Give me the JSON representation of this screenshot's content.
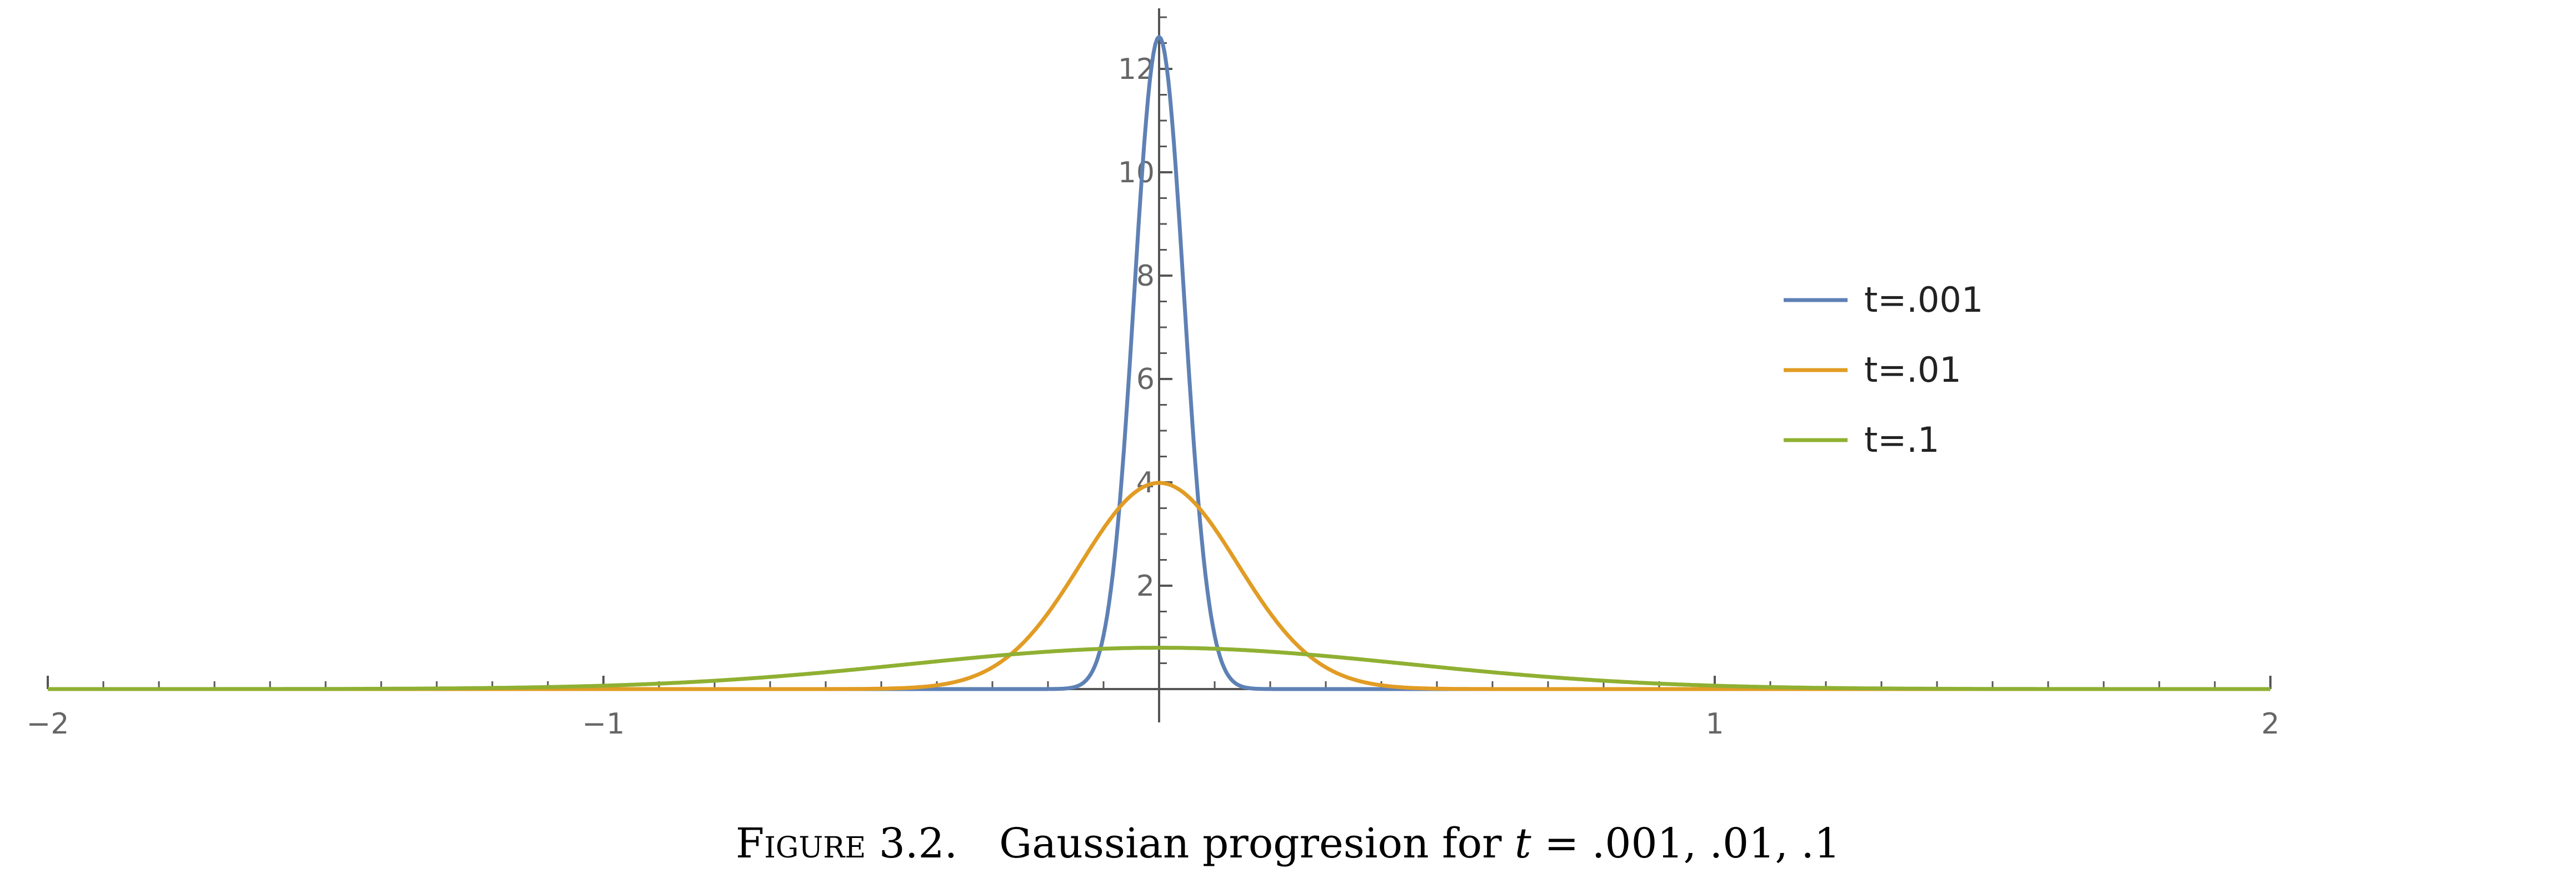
{
  "figure": {
    "caption_label": "Figure 3.2.",
    "caption_text": "Gaussian progresion for",
    "caption_var": "t",
    "caption_values": "= .001, .01, .1"
  },
  "chart_data": {
    "type": "line",
    "title": "",
    "xlabel": "",
    "ylabel": "",
    "xlim": [
      -2,
      2
    ],
    "ylim": [
      0,
      13
    ],
    "x_ticks": [
      -2,
      -1,
      1,
      2
    ],
    "x_tick_labels": [
      "−2",
      "−1",
      "1",
      "2"
    ],
    "x_minor_step": 0.1,
    "y_ticks": [
      2,
      4,
      6,
      8,
      10,
      12
    ],
    "y_tick_labels": [
      "2",
      "4",
      "6",
      "8",
      "10",
      "12"
    ],
    "y_minor_step": 0.5,
    "grid": false,
    "legend_position": "right",
    "series": [
      {
        "name": "t=.001",
        "color": "#5e81b5",
        "t": 0.001,
        "x": [
          -0.15,
          -0.1,
          -0.06,
          -0.04,
          -0.03,
          -0.02,
          -0.01,
          0,
          0.01,
          0.02,
          0.03,
          0.04,
          0.06,
          0.1,
          0.15
        ],
        "y": [
          0.0,
          0.0,
          0.0,
          0.23,
          1.32,
          4.62,
          9.84,
          12.62,
          9.84,
          4.62,
          1.32,
          0.23,
          0.0,
          0.0,
          0.0
        ]
      },
      {
        "name": "t=.01",
        "color": "#e19c24",
        "t": 0.01,
        "x": [
          -0.4,
          -0.3,
          -0.25,
          -0.2,
          -0.15,
          -0.1,
          -0.05,
          0,
          0.05,
          0.1,
          0.15,
          0.2,
          0.25,
          0.3,
          0.4
        ],
        "y": [
          0.0,
          0.04,
          0.17,
          0.54,
          1.29,
          2.42,
          3.52,
          3.99,
          3.52,
          2.42,
          1.29,
          0.54,
          0.17,
          0.04,
          0.0
        ],
        "peak": 3.99
      },
      {
        "name": "t=.1",
        "color": "#8fb032",
        "t": 0.1,
        "x": [
          -1.2,
          -1.0,
          -0.8,
          -0.6,
          -0.4,
          -0.2,
          0,
          0.2,
          0.4,
          0.6,
          0.8,
          1.0,
          1.2
        ],
        "y": [
          0.01,
          0.05,
          0.15,
          0.33,
          0.55,
          0.73,
          0.8,
          0.73,
          0.55,
          0.33,
          0.15,
          0.05,
          0.01
        ],
        "peak": 0.8
      }
    ]
  }
}
